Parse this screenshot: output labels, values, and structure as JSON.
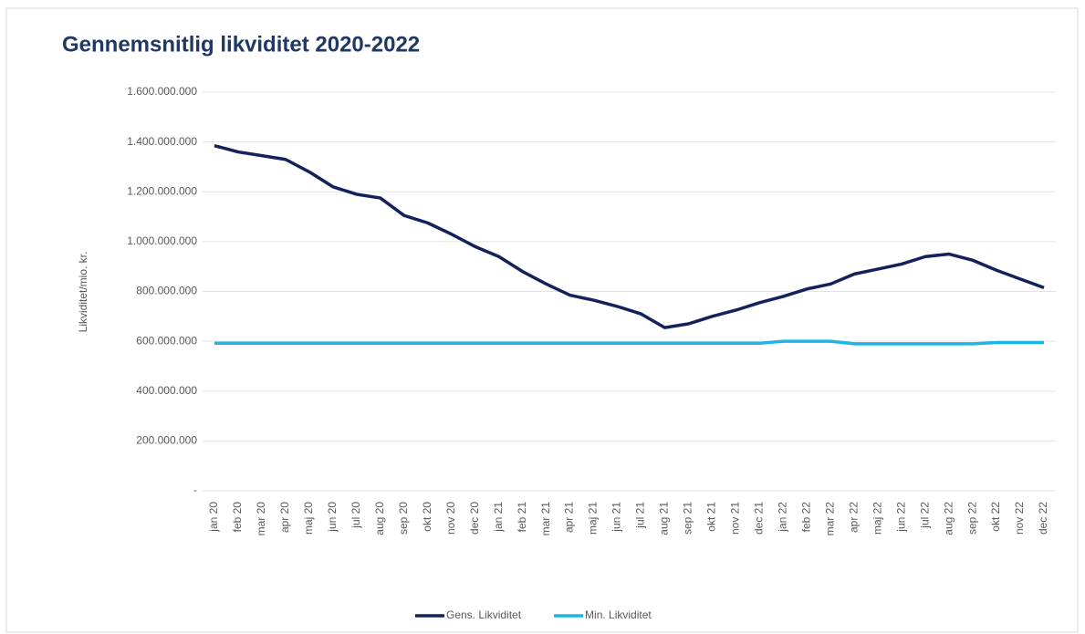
{
  "chart_data": {
    "type": "line",
    "title": "Gennemsnitlig likviditet 2020-2022",
    "y_label": "Likviditet/mio. kr.",
    "categories": [
      "jan 20",
      "feb 20",
      "mar 20",
      "apr 20",
      "maj 20",
      "jun 20",
      "jul 20",
      "aug 20",
      "sep 20",
      "okt 20",
      "nov 20",
      "dec 20",
      "jan 21",
      "feb 21",
      "mar 21",
      "apr 21",
      "maj 21",
      "jun 21",
      "jul 21",
      "aug 21",
      "sep 21",
      "okt 21",
      "nov 21",
      "dec 21",
      "jan 22",
      "feb 22",
      "mar 22",
      "apr 22",
      "maj 22",
      "jun 22",
      "jul 22",
      "aug 22",
      "sep 22",
      "okt 22",
      "nov 22",
      "dec 22"
    ],
    "series": [
      {
        "name": "Gens. Likviditet",
        "color": "#14215a",
        "values": [
          1385000000,
          1360000000,
          1345000000,
          1330000000,
          1280000000,
          1220000000,
          1190000000,
          1175000000,
          1105000000,
          1075000000,
          1030000000,
          980000000,
          940000000,
          880000000,
          830000000,
          785000000,
          765000000,
          740000000,
          710000000,
          655000000,
          670000000,
          700000000,
          725000000,
          755000000,
          780000000,
          810000000,
          830000000,
          870000000,
          890000000,
          910000000,
          940000000,
          950000000,
          925000000,
          885000000,
          850000000,
          815000000
        ]
      },
      {
        "name": "Min. Likviditet",
        "color": "#1fb4e6",
        "values": [
          592000000,
          592000000,
          592000000,
          592000000,
          592000000,
          592000000,
          592000000,
          592000000,
          592000000,
          592000000,
          592000000,
          592000000,
          592000000,
          592000000,
          592000000,
          592000000,
          592000000,
          592000000,
          592000000,
          592000000,
          592000000,
          592000000,
          592000000,
          592000000,
          600000000,
          600000000,
          600000000,
          590000000,
          590000000,
          590000000,
          590000000,
          590000000,
          590000000,
          595000000,
          595000000,
          595000000
        ]
      }
    ],
    "ylim": [
      0,
      1600000000
    ],
    "yticks": [
      {
        "value": 0,
        "label": "-"
      },
      {
        "value": 200000000,
        "label": "200.000.000"
      },
      {
        "value": 400000000,
        "label": "400.000.000"
      },
      {
        "value": 600000000,
        "label": "600.000.000"
      },
      {
        "value": 800000000,
        "label": "800.000.000"
      },
      {
        "value": 1000000000,
        "label": "1.000.000.000"
      },
      {
        "value": 1200000000,
        "label": "1.200.000.000"
      },
      {
        "value": 1400000000,
        "label": "1.400.000.000"
      },
      {
        "value": 1600000000,
        "label": "1.600.000.000"
      }
    ],
    "grid": true
  }
}
